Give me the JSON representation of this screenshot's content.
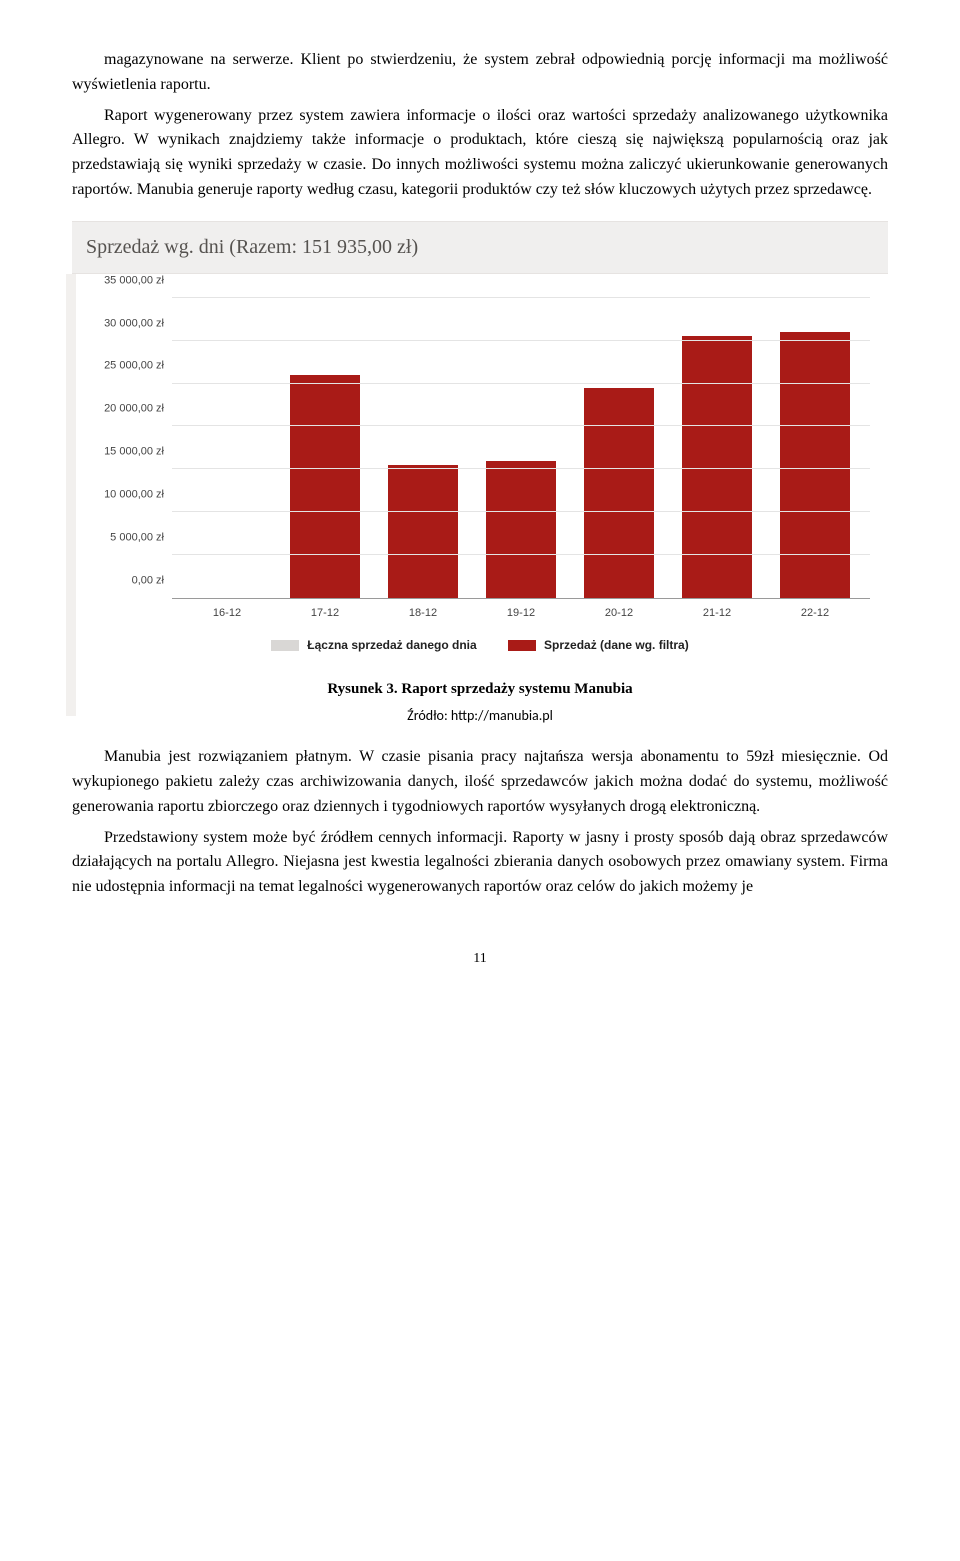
{
  "paragraphs": {
    "p1": "magazynowane na serwerze. Klient po stwierdzeniu, że system zebrał odpowiednią porcję informacji ma możliwość wyświetlenia raportu.",
    "p2": "Raport wygenerowany przez system zawiera informacje o ilości oraz wartości sprzedaży analizowanego użytkownika Allegro. W wynikach znajdziemy także informacje o produktach, które cieszą się największą popularnością oraz jak przedstawiają się wyniki sprzedaży w czasie. Do innych możliwości systemu można zaliczyć ukierunkowanie generowanych raportów. Manubia generuje raporty według czasu, kategorii produktów czy też słów kluczowych użytych przez sprzedawcę.",
    "p3": "Manubia jest rozwiązaniem płatnym. W czasie pisania pracy najtańsza wersja abonamentu to 59zł miesięcznie. Od wykupionego pakietu zależy czas archiwizowania danych, ilość sprzedawców jakich można dodać do systemu, możliwość generowania raportu zbiorczego oraz dziennych i tygodniowych raportów wysyłanych drogą elektroniczną.",
    "p4": "Przedstawiony system może być źródłem cennych informacji. Raporty w jasny i prosty sposób dają obraz sprzedawców działających na portalu Allegro. Niejasna jest kwestia legalności zbierania danych osobowych przez omawiany system. Firma nie udostępnia informacji na temat legalności wygenerowanych raportów oraz celów do jakich możemy je"
  },
  "chart": {
    "type": "bar",
    "title_prefix": "Sprzedaż wg. dni (Razem: ",
    "title_value": "151 935,00 zł",
    "title_suffix": ")",
    "title_fontsize": 20,
    "title_bg": "#f0efee",
    "title_color": "#55524f",
    "background_color": "#ffffff",
    "grid_color": "#e4e4e4",
    "axis_color": "#9a9a9a",
    "bar_color": "#a91b17",
    "bar_width": 0.72,
    "ylim": [
      0,
      35000
    ],
    "ytick_step": 5000,
    "y_ticks": [
      "0,00 zł",
      "5 000,00 zł",
      "10 000,00 zł",
      "15 000,00 zł",
      "20 000,00 zł",
      "25 000,00 zł",
      "30 000,00 zł",
      "35 000,00 zł"
    ],
    "categories": [
      "16-12",
      "17-12",
      "18-12",
      "19-12",
      "20-12",
      "21-12",
      "22-12"
    ],
    "values": [
      0,
      26000,
      15500,
      16000,
      24500,
      30500,
      31000
    ],
    "tick_font_size": 11,
    "tick_color": "#444444",
    "legend": {
      "items": [
        {
          "label": "Łączna sprzedaż danego dnia",
          "color": "#d9d7d5"
        },
        {
          "label": "Sprzedaż (dane wg. filtra)",
          "color": "#a91b17"
        }
      ],
      "font_size": 12,
      "font_weight": "bold"
    }
  },
  "caption": "Rysunek 3. Raport sprzedaży systemu Manubia",
  "source": "Źródło: http://manubia.pl",
  "page_number": "11"
}
